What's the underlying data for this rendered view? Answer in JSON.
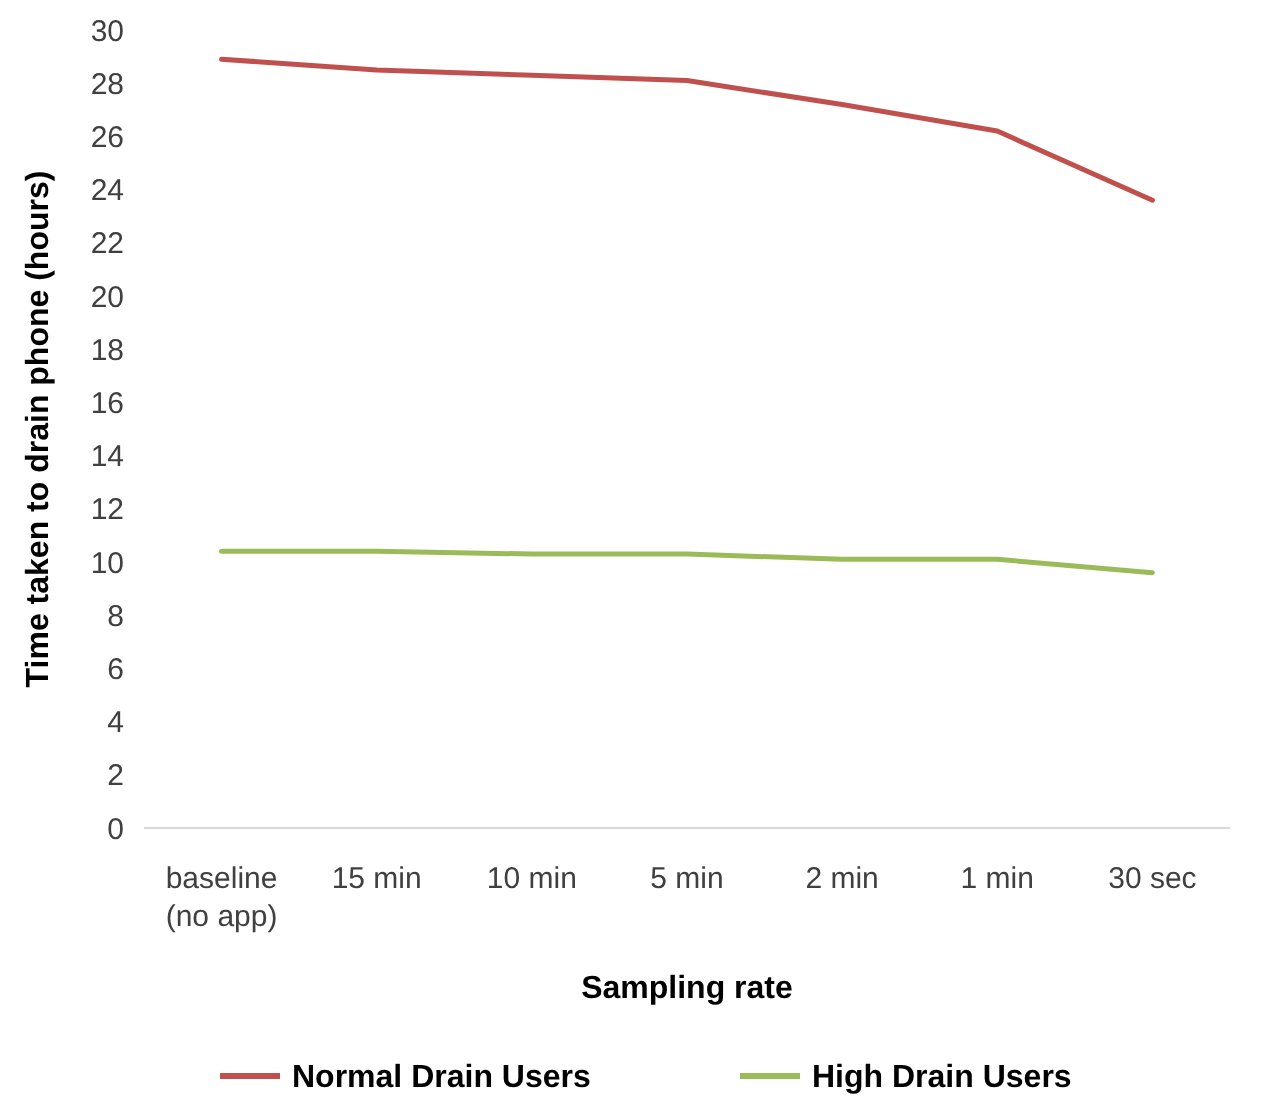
{
  "chart_data": {
    "type": "line",
    "xlabel": "Sampling rate",
    "ylabel": "Time taken to drain phone (hours)",
    "categories": [
      "baseline\n(no app)",
      "15 min",
      "10 min",
      "5 min",
      "2 min",
      "1 min",
      "30 sec"
    ],
    "series": [
      {
        "name": "Normal Drain Users",
        "color": "#c0504d",
        "values": [
          28.9,
          28.5,
          28.3,
          28.1,
          27.2,
          26.2,
          23.6
        ]
      },
      {
        "name": "High Drain Users",
        "color": "#9bbb59",
        "values": [
          10.4,
          10.4,
          10.3,
          10.3,
          10.1,
          10.1,
          9.6
        ]
      }
    ],
    "ylim": [
      0,
      30
    ],
    "yticks": [
      0,
      2,
      4,
      6,
      8,
      10,
      12,
      14,
      16,
      18,
      20,
      22,
      24,
      26,
      28,
      30
    ],
    "grid": false,
    "legend": "bottom",
    "marker": "none",
    "line_style": "solid"
  }
}
